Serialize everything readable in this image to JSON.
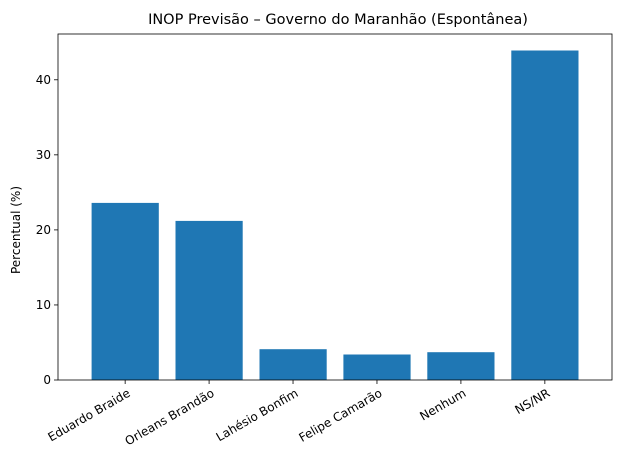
{
  "chart_data": {
    "type": "bar",
    "title": "INOP Previsão – Governo do Maranhão (Espontânea)",
    "xlabel": "",
    "ylabel": "Percentual (%)",
    "categories": [
      "Eduardo Braide",
      "Orleans Brandão",
      "Lahésio Bonfim",
      "Felipe Camarão",
      "Nenhum",
      "NS/NR"
    ],
    "values": [
      23.6,
      21.2,
      4.1,
      3.4,
      3.7,
      43.9
    ],
    "ylim": [
      0,
      46.1
    ],
    "yticks": [
      "0",
      "10",
      "20",
      "30",
      "40"
    ],
    "grid": false,
    "legend": "none",
    "bar_color": "#1f77b4"
  }
}
